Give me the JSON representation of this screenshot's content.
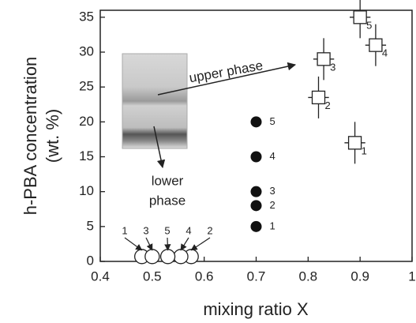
{
  "chart_data": {
    "type": "scatter",
    "xlabel": "mixing ratio X",
    "ylabel": [
      "h-PBA concentration",
      "(wt. %)"
    ],
    "xlim": [
      0.4,
      1.0
    ],
    "ylim": [
      0,
      36
    ],
    "xticks": [
      0.4,
      0.5,
      0.6,
      0.7,
      0.8,
      0.9,
      1
    ],
    "yticks": [
      0,
      5,
      10,
      15,
      20,
      25,
      30,
      35
    ],
    "annotations": {
      "upper": "upper phase",
      "lower": [
        "lower",
        "phase"
      ]
    },
    "series": [
      {
        "marker": "open-circle",
        "x": [
          0.48,
          0.575,
          0.5,
          0.555,
          0.53
        ],
        "values": [
          0.7,
          0.7,
          0.7,
          0.7,
          0.7
        ],
        "labels": [
          "1",
          "2",
          "3",
          "4",
          "5"
        ]
      },
      {
        "marker": "filled-circle",
        "x": [
          0.7,
          0.7,
          0.7,
          0.7,
          0.7
        ],
        "values": [
          5,
          8,
          10,
          15,
          20
        ],
        "labels": [
          "1",
          "2",
          "3",
          "4",
          "5"
        ]
      },
      {
        "marker": "open-square",
        "x": [
          0.89,
          0.82,
          0.83,
          0.93,
          0.9
        ],
        "values": [
          17,
          23.5,
          29,
          31,
          35
        ],
        "xerr": [
          0.02,
          0.02,
          0.02,
          0.02,
          0.02
        ],
        "yerr": [
          3,
          3,
          3,
          3,
          3
        ],
        "labels": [
          "1",
          "2",
          "3",
          "4",
          "5"
        ]
      }
    ]
  }
}
